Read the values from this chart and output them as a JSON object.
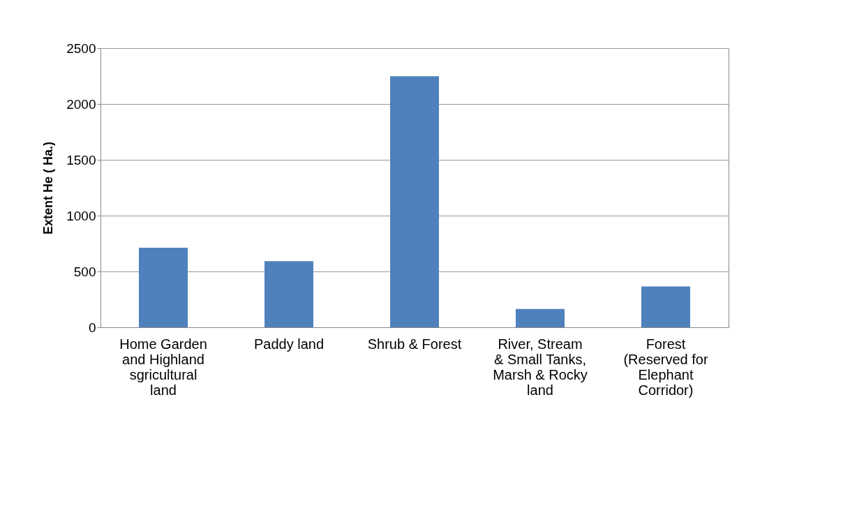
{
  "chart_data": {
    "type": "bar",
    "ylabel": "Extent He ( Ha.)",
    "categories": [
      "Home Garden and Highland sgricultural land",
      "Paddy land",
      "Shrub & Forest",
      "River, Stream & Small Tanks, Marsh & Rocky land",
      "Forest (Reserved for Elephant Corridor)"
    ],
    "values": [
      712,
      592,
      2248,
      164,
      365
    ],
    "color": "#4f81bd",
    "ylim": [
      0,
      2500
    ],
    "yticks": [
      0,
      500,
      1000,
      1500,
      2000,
      2500
    ],
    "grid": "y"
  }
}
